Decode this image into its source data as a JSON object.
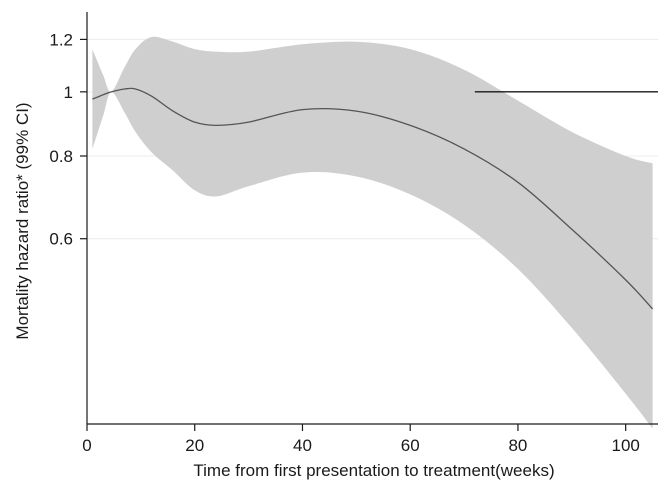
{
  "chart_data": {
    "type": "area",
    "title": "",
    "xlabel": "Time from first presentation to treatment(weeks)",
    "ylabel": "Mortality  hazard ratio* (99% CI)",
    "y_scale": "log",
    "xlim": [
      0,
      106
    ],
    "ylim": [
      0.315,
      1.32
    ],
    "grid": true,
    "x_ticks": [
      {
        "value": 0,
        "label": "0"
      },
      {
        "value": 20,
        "label": "20"
      },
      {
        "value": 40,
        "label": "40"
      },
      {
        "value": 60,
        "label": "60"
      },
      {
        "value": 80,
        "label": "80"
      },
      {
        "value": 100,
        "label": "100"
      }
    ],
    "y_ticks": [
      {
        "value": 0.6,
        "label": "0.6"
      },
      {
        "value": 0.8,
        "label": "0.8"
      },
      {
        "value": 1,
        "label": "1"
      },
      {
        "value": 1.2,
        "label": "1.2"
      }
    ],
    "reference_line": {
      "y": 1,
      "x_from": 72
    },
    "colors": {
      "band": "#cfcfcf",
      "line": "#555555",
      "reference": "#1a1a1a"
    },
    "series": [
      {
        "x": [
          1,
          3,
          4.5,
          7,
          9,
          12,
          16,
          20,
          24,
          30,
          40,
          50,
          60,
          70,
          80,
          90,
          100,
          105
        ],
        "y": [
          0.975,
          0.99,
          1.0,
          1.01,
          1.01,
          0.985,
          0.935,
          0.9,
          0.89,
          0.9,
          0.94,
          0.935,
          0.89,
          0.82,
          0.73,
          0.62,
          0.52,
          0.47
        ],
        "lower": [
          0.82,
          0.92,
          1.0,
          0.93,
          0.87,
          0.81,
          0.76,
          0.71,
          0.695,
          0.72,
          0.755,
          0.745,
          0.7,
          0.63,
          0.54,
          0.44,
          0.35,
          0.31
        ],
        "upper": [
          1.16,
          1.06,
          1.0,
          1.09,
          1.16,
          1.21,
          1.19,
          1.16,
          1.15,
          1.15,
          1.18,
          1.19,
          1.16,
          1.08,
          0.97,
          0.87,
          0.8,
          0.78
        ]
      }
    ]
  }
}
